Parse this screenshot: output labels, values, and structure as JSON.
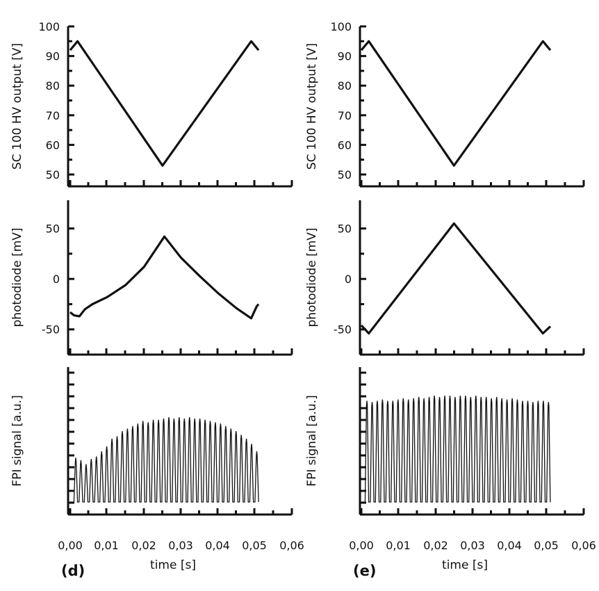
{
  "chart_data": [
    {
      "panel": "d",
      "type": "line",
      "label": "(d)",
      "xlabel": "time [s]",
      "xlim": [
        0.0,
        0.06
      ],
      "xticks": [
        "0,00",
        "0,01",
        "0,02",
        "0,03",
        "0,04",
        "0,05",
        "0,06"
      ],
      "subplots": [
        {
          "id": "hv",
          "ylabel": "SC 100 HV output [V]",
          "ylim": [
            46,
            100
          ],
          "yticks": [
            50,
            60,
            70,
            80,
            90,
            100
          ],
          "ytick_labels": [
            "50",
            "60",
            "70",
            "80",
            "90",
            "100"
          ],
          "series": [
            {
              "name": "HV output",
              "x": [
                0.0,
                0.002,
                0.025,
                0.049,
                0.051
              ],
              "y": [
                92,
                95,
                53,
                95,
                92
              ]
            }
          ]
        },
        {
          "id": "pd",
          "ylabel": "photodiode [mV]",
          "ylim": [
            -75,
            78
          ],
          "yticks": [
            -50,
            0,
            50
          ],
          "ytick_labels": [
            "-50",
            "0",
            "50"
          ],
          "series": [
            {
              "name": "photodiode",
              "x": [
                0.0,
                0.001,
                0.0025,
                0.004,
                0.006,
                0.01,
                0.015,
                0.02,
                0.0255,
                0.03,
                0.035,
                0.04,
                0.045,
                0.049,
                0.0505,
                0.051
              ],
              "y": [
                -33,
                -36,
                -37,
                -30,
                -25,
                -18,
                -6,
                12,
                42,
                21,
                3,
                -14,
                -29,
                -39,
                -27,
                -25
              ]
            }
          ]
        },
        {
          "id": "fpi",
          "ylabel": "FPI signal [a.u.]",
          "yticks_count": 13,
          "baseline": 0.0,
          "series": [
            {
              "name": "FPI signal",
              "peak_times": [
                0.0015,
                0.0029,
                0.0043,
                0.0057,
                0.0071,
                0.0085,
                0.0099,
                0.0113,
                0.0127,
                0.0141,
                0.0155,
                0.0169,
                0.0183,
                0.0197,
                0.0211,
                0.0225,
                0.0239,
                0.0253,
                0.0267,
                0.0281,
                0.0295,
                0.0309,
                0.0323,
                0.0337,
                0.0351,
                0.0365,
                0.0379,
                0.0393,
                0.0407,
                0.0421,
                0.0435,
                0.0449,
                0.0463,
                0.0477,
                0.0491,
                0.0505
              ],
              "peak_heights": [
                0.35,
                0.33,
                0.3,
                0.34,
                0.36,
                0.4,
                0.44,
                0.5,
                0.52,
                0.56,
                0.58,
                0.6,
                0.62,
                0.64,
                0.63,
                0.65,
                0.65,
                0.66,
                0.67,
                0.66,
                0.67,
                0.66,
                0.67,
                0.66,
                0.66,
                0.65,
                0.64,
                0.63,
                0.62,
                0.6,
                0.58,
                0.56,
                0.53,
                0.5,
                0.46,
                0.4
              ]
            }
          ]
        }
      ]
    },
    {
      "panel": "e",
      "type": "line",
      "label": "(e)",
      "xlabel": "time [s]",
      "xlim": [
        0.0,
        0.06
      ],
      "xticks": [
        "0,00",
        "0,01",
        "0,02",
        "0,03",
        "0,04",
        "0,05",
        "0,06"
      ],
      "subplots": [
        {
          "id": "hv",
          "ylabel": "SC 100 HV output [V]",
          "ylim": [
            46,
            100
          ],
          "yticks": [
            50,
            60,
            70,
            80,
            90,
            100
          ],
          "ytick_labels": [
            "50",
            "60",
            "70",
            "80",
            "90",
            "100"
          ],
          "series": [
            {
              "name": "HV output",
              "x": [
                0.0,
                0.002,
                0.025,
                0.049,
                0.051
              ],
              "y": [
                92,
                95,
                53,
                95,
                92
              ]
            }
          ]
        },
        {
          "id": "pd",
          "ylabel": "photodiode [mV]",
          "ylim": [
            -75,
            78
          ],
          "yticks": [
            -50,
            0,
            50
          ],
          "ytick_labels": [
            "-50",
            "0",
            "50"
          ],
          "series": [
            {
              "name": "photodiode",
              "x": [
                0.0,
                0.002,
                0.025,
                0.049,
                0.051
              ],
              "y": [
                -46,
                -54,
                55,
                -54,
                -47
              ]
            }
          ]
        },
        {
          "id": "fpi",
          "ylabel": "FPI signal [a.u.]",
          "yticks_count": 13,
          "baseline": 0.0,
          "series": [
            {
              "name": "FPI signal",
              "peak_times": [
                0.0015,
                0.0029,
                0.0043,
                0.0057,
                0.0071,
                0.0085,
                0.0099,
                0.0113,
                0.0127,
                0.0141,
                0.0155,
                0.0169,
                0.0183,
                0.0197,
                0.0211,
                0.0225,
                0.0239,
                0.0253,
                0.0267,
                0.0281,
                0.0295,
                0.0309,
                0.0323,
                0.0337,
                0.0351,
                0.0365,
                0.0379,
                0.0393,
                0.0407,
                0.0421,
                0.0435,
                0.0449,
                0.0463,
                0.0477,
                0.0491,
                0.0505
              ],
              "peak_heights": [
                0.8,
                0.79,
                0.8,
                0.81,
                0.8,
                0.8,
                0.81,
                0.82,
                0.81,
                0.82,
                0.83,
                0.82,
                0.83,
                0.84,
                0.83,
                0.84,
                0.84,
                0.83,
                0.84,
                0.84,
                0.83,
                0.84,
                0.83,
                0.83,
                0.82,
                0.83,
                0.82,
                0.81,
                0.82,
                0.81,
                0.8,
                0.8,
                0.79,
                0.8,
                0.8,
                0.79
              ]
            }
          ]
        }
      ]
    }
  ]
}
